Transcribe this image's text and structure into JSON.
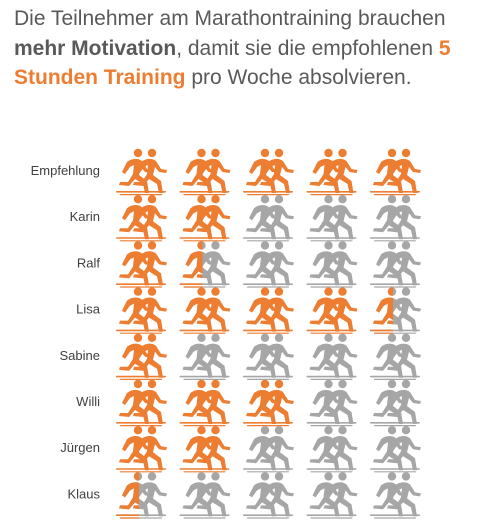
{
  "headline": {
    "part1": "Die Teilnehmer am Marathontraining brauchen ",
    "bold1": "mehr Motivation",
    "part2": ", damit sie die empfohlenen ",
    "bold2": "5 Stunden Training",
    "part3": " pro Woche absolvieren."
  },
  "colors": {
    "active": "#ED7D31",
    "inactive": "#A6A6A6",
    "label": "#404040"
  },
  "icon": "runners-icon",
  "chart_data": {
    "type": "pictogram",
    "title": "",
    "unit": "hours",
    "max_per_row": 5,
    "categories": [
      "Empfehlung",
      "Karin",
      "Ralf",
      "Lisa",
      "Sabine",
      "Willi",
      "Jürgen",
      "Klaus"
    ],
    "values": [
      5,
      2,
      1.5,
      4.5,
      1,
      3,
      2,
      0.5
    ]
  }
}
